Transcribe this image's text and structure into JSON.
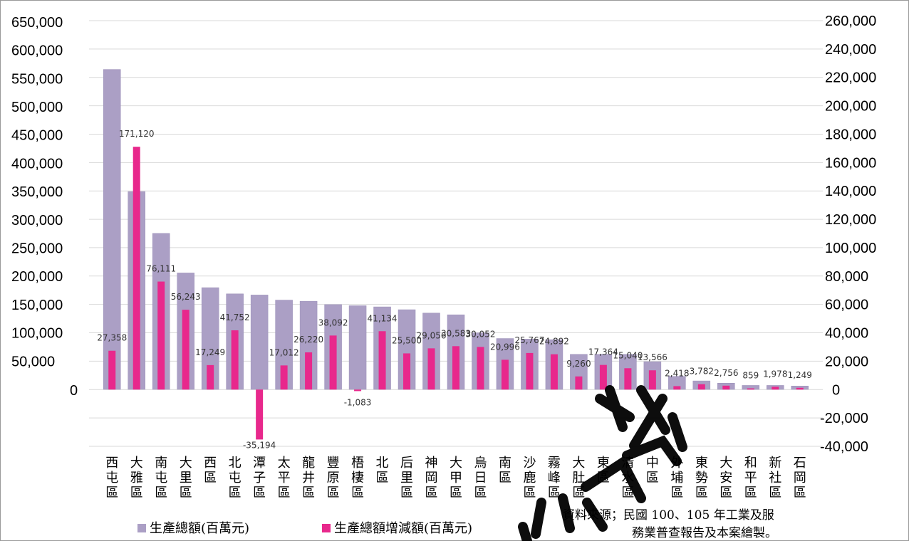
{
  "chart_data": {
    "type": "bar",
    "categories": [
      "西屯區",
      "大雅區",
      "南屯區",
      "大里區",
      "西區",
      "北屯區",
      "潭子區",
      "太平區",
      "龍井區",
      "豐原區",
      "梧棲區",
      "北區",
      "后里區",
      "神岡區",
      "大甲區",
      "烏日區",
      "南區",
      "沙鹿區",
      "霧峰區",
      "大肚區",
      "東區",
      "清水區",
      "中區",
      "外埔區",
      "東勢區",
      "大安區",
      "和平區",
      "新社區",
      "石岡區"
    ],
    "series": [
      {
        "name": "生產總額(百萬元)",
        "axis": "left",
        "color": "#ab9fc5",
        "values": [
          566000,
          350000,
          276000,
          206000,
          180000,
          169000,
          167000,
          158000,
          156000,
          150000,
          148000,
          146000,
          141000,
          135000,
          132000,
          100000,
          90000,
          89000,
          88000,
          62000,
          62000,
          62000,
          49000,
          23000,
          15000,
          11000,
          7000,
          7000,
          6000
        ]
      },
      {
        "name": "生產總額增減額(百萬元)",
        "axis": "right",
        "color": "#e8288c",
        "values": [
          27358,
          171120,
          76111,
          56243,
          17249,
          41752,
          -35194,
          17012,
          26220,
          38092,
          -1083,
          41134,
          25500,
          29056,
          30583,
          30052,
          20996,
          25767,
          24892,
          9260,
          17364,
          15040,
          13566,
          2418,
          3782,
          2756,
          859,
          1978,
          1249
        ],
        "labels": [
          "27,358",
          "171,120",
          "76,111",
          "56,243",
          "17,249",
          "41,752",
          "-35,194",
          "17,012",
          "26,220",
          "38,092",
          "-1,083",
          "41,134",
          "25,500",
          "29,056",
          "30,583",
          "30,052",
          "20,996",
          "25,767",
          "24,892",
          "9,260",
          "17,364",
          "15,040",
          "13,566",
          "2,418",
          "3,782",
          "2,756",
          "859",
          "1,978",
          "1,249"
        ]
      }
    ],
    "left_axis": {
      "min": 0,
      "max": 650000,
      "ticks": [
        "0",
        "50,000",
        "100,000",
        "150,000",
        "200,000",
        "250,000",
        "300,000",
        "350,000",
        "400,000",
        "450,000",
        "500,000",
        "550,000",
        "600,000",
        "650,000"
      ]
    },
    "right_axis": {
      "min": -40000,
      "max": 260000,
      "ticks": [
        "-40,000",
        "-20,000",
        "0",
        "20,000",
        "40,000",
        "60,000",
        "80,000",
        "100,000",
        "120,000",
        "140,000",
        "160,000",
        "180,000",
        "200,000",
        "220,000",
        "240,000",
        "260,000"
      ]
    },
    "grid": true,
    "legend_position": "bottom-left"
  },
  "source_note": [
    "資料來源；民國 100、105 年工業及服",
    "務業普查報告及本案繪製。"
  ],
  "watermark": "參考"
}
